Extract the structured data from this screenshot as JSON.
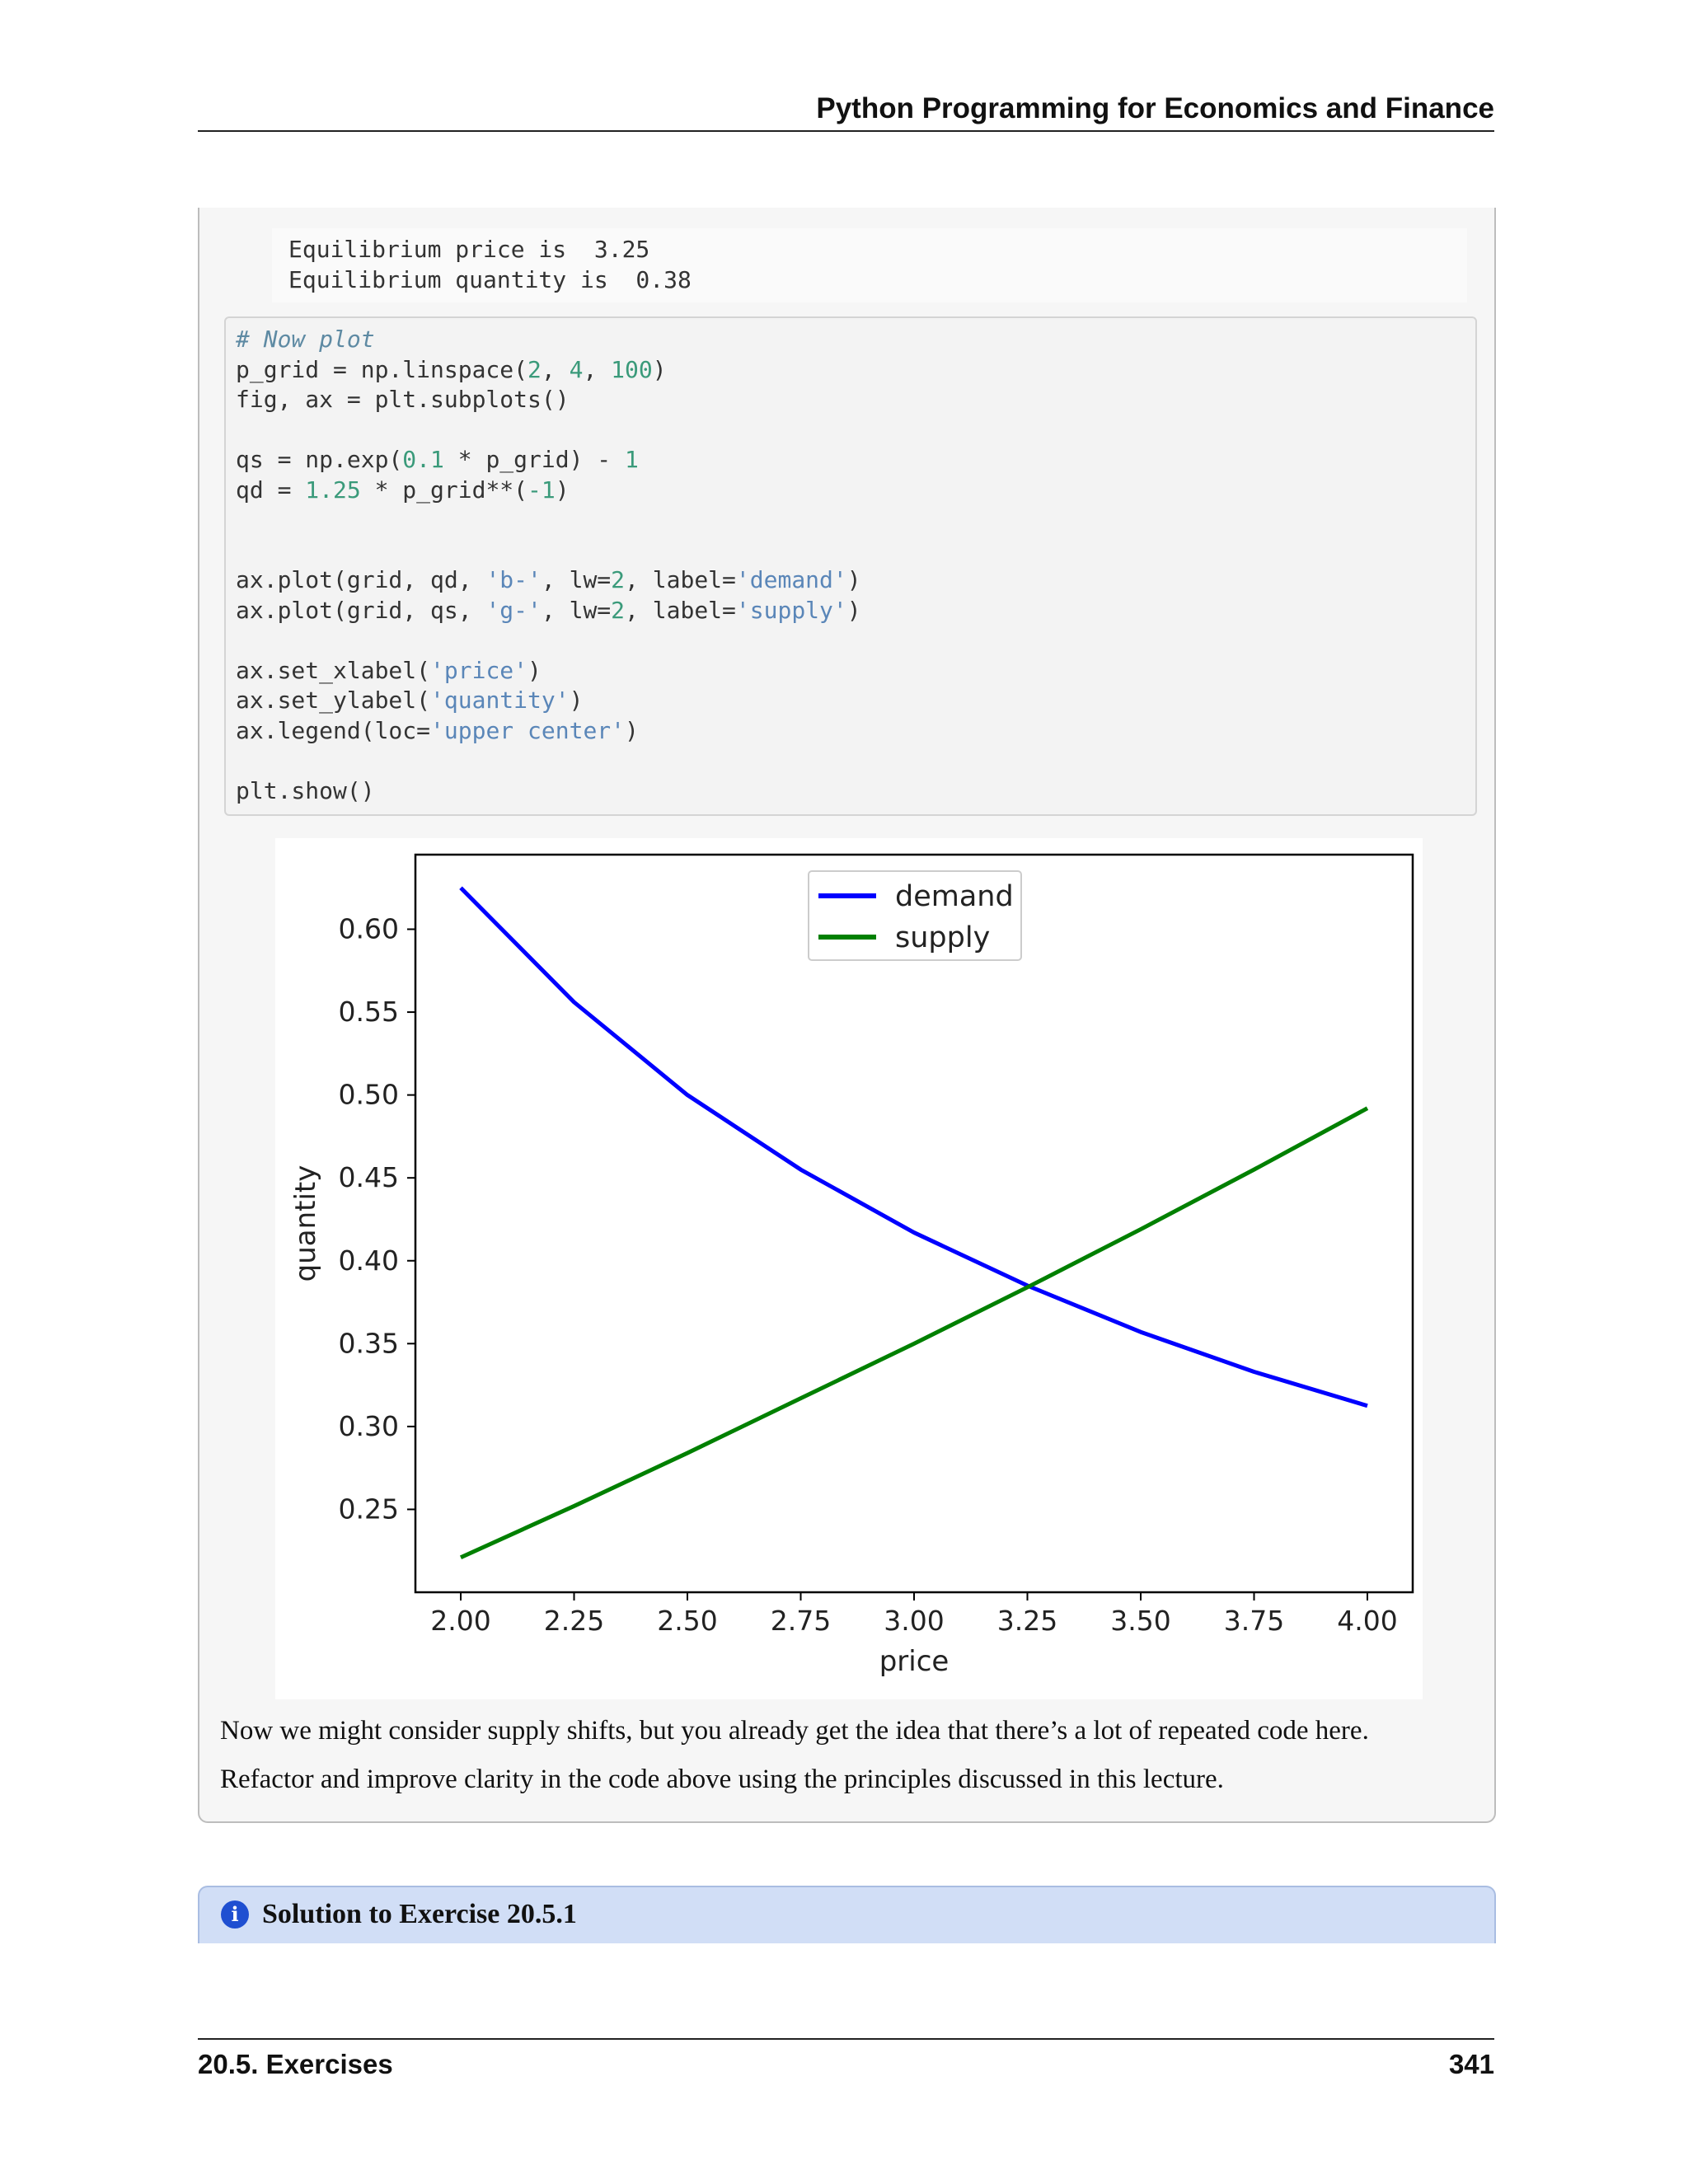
{
  "header": {
    "title": "Python Programming for Economics and Finance"
  },
  "output": {
    "lines": [
      "Equilibrium price is  3.25",
      "Equilibrium quantity is  0.38"
    ]
  },
  "code": {
    "comment": "# Now plot",
    "line_pgrid": [
      "p_grid = np.linspace(",
      "2",
      ", ",
      "4",
      ", ",
      "100",
      ")"
    ],
    "line_fig": "fig, ax = plt.subplots()",
    "line_qs": [
      "qs = np.exp(",
      "0.1",
      " * p_grid) - ",
      "1"
    ],
    "line_qd": [
      "qd = ",
      "1.25",
      " * p_grid**(",
      "-1",
      ")"
    ],
    "line_plot1": [
      "ax.plot(grid, qd, ",
      "'b-'",
      ", lw=",
      "2",
      ", label=",
      "'demand'",
      ")"
    ],
    "line_plot2": [
      "ax.plot(grid, qs, ",
      "'g-'",
      ", lw=",
      "2",
      ", label=",
      "'supply'",
      ")"
    ],
    "line_xlabel": [
      "ax.set_xlabel(",
      "'price'",
      ")"
    ],
    "line_ylabel": [
      "ax.set_ylabel(",
      "'quantity'",
      ")"
    ],
    "line_legend": [
      "ax.legend(loc=",
      "'upper center'",
      ")"
    ],
    "line_show": "plt.show()"
  },
  "chart_data": {
    "type": "line",
    "xlabel": "price",
    "ylabel": "quantity",
    "xlim": [
      1.9,
      4.1
    ],
    "ylim": [
      0.2,
      0.645
    ],
    "x_ticks": [
      "2.00",
      "2.25",
      "2.50",
      "2.75",
      "3.00",
      "3.25",
      "3.50",
      "3.75",
      "4.00"
    ],
    "y_ticks": [
      "0.25",
      "0.30",
      "0.35",
      "0.40",
      "0.45",
      "0.50",
      "0.55",
      "0.60"
    ],
    "legend_position": "upper center",
    "series": [
      {
        "name": "demand",
        "color": "#0000ff",
        "x": [
          2.0,
          2.25,
          2.5,
          2.75,
          3.0,
          3.25,
          3.5,
          3.75,
          4.0
        ],
        "y": [
          0.625,
          0.556,
          0.5,
          0.455,
          0.417,
          0.385,
          0.357,
          0.333,
          0.3125
        ]
      },
      {
        "name": "supply",
        "color": "#008000",
        "x": [
          2.0,
          2.25,
          2.5,
          2.75,
          3.0,
          3.25,
          3.5,
          3.75,
          4.0
        ],
        "y": [
          0.221,
          0.252,
          0.284,
          0.317,
          0.35,
          0.384,
          0.419,
          0.455,
          0.492
        ]
      }
    ]
  },
  "paragraphs": [
    "Now we might consider supply shifts, but you already get the idea that there’s a lot of repeated code here.",
    "Refactor and improve clarity in the code above using the principles discussed in this lecture."
  ],
  "solution": {
    "icon": "info-icon",
    "title": "Solution to Exercise 20.5.1"
  },
  "footer": {
    "section": "20.5.  Exercises",
    "page": "341"
  }
}
